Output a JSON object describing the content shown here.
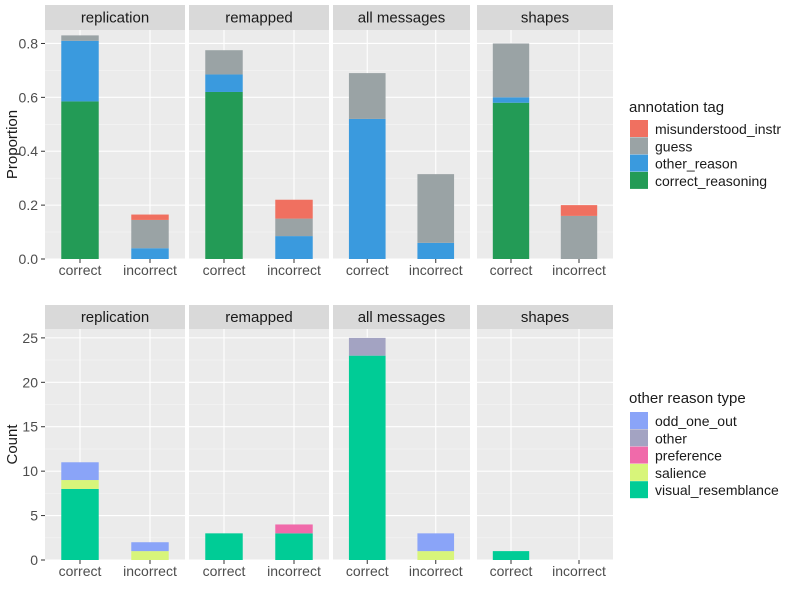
{
  "chart_data": [
    {
      "type": "bar",
      "stacked": true,
      "ylabel": "Proportion",
      "ylim": [
        0,
        0.85
      ],
      "yticks": [
        0.0,
        0.2,
        0.4,
        0.6,
        0.8
      ],
      "ytick_labels": [
        "0.0",
        "0.2",
        "0.4",
        "0.6",
        "0.8"
      ],
      "categories": [
        "correct",
        "incorrect"
      ],
      "legend": {
        "title": "annotation tag",
        "entries": [
          "misunderstood_instr",
          "guess",
          "other_reason",
          "correct_reasoning"
        ]
      },
      "stack_order": [
        "correct_reasoning",
        "other_reason",
        "guess",
        "misunderstood_instr"
      ],
      "colors": {
        "misunderstood_instr": "#f07060",
        "guess": "#9aa3a5",
        "other_reason": "#3a9ade",
        "correct_reasoning": "#239b56"
      },
      "facets": [
        {
          "title": "replication",
          "series": [
            {
              "name": "correct_reasoning",
              "values": [
                0.585,
                0.0
              ]
            },
            {
              "name": "other_reason",
              "values": [
                0.225,
                0.04
              ]
            },
            {
              "name": "guess",
              "values": [
                0.02,
                0.105
              ]
            },
            {
              "name": "misunderstood_instr",
              "values": [
                0.0,
                0.02
              ]
            }
          ]
        },
        {
          "title": "remapped",
          "series": [
            {
              "name": "correct_reasoning",
              "values": [
                0.62,
                0.0
              ]
            },
            {
              "name": "other_reason",
              "values": [
                0.065,
                0.085
              ]
            },
            {
              "name": "guess",
              "values": [
                0.09,
                0.065
              ]
            },
            {
              "name": "misunderstood_instr",
              "values": [
                0.0,
                0.07
              ]
            }
          ]
        },
        {
          "title": "all messages",
          "series": [
            {
              "name": "correct_reasoning",
              "values": [
                0.0,
                0.0
              ]
            },
            {
              "name": "other_reason",
              "values": [
                0.52,
                0.06
              ]
            },
            {
              "name": "guess",
              "values": [
                0.17,
                0.255
              ]
            },
            {
              "name": "misunderstood_instr",
              "values": [
                0.0,
                0.0
              ]
            }
          ]
        },
        {
          "title": "shapes",
          "series": [
            {
              "name": "correct_reasoning",
              "values": [
                0.58,
                0.0
              ]
            },
            {
              "name": "other_reason",
              "values": [
                0.02,
                0.0
              ]
            },
            {
              "name": "guess",
              "values": [
                0.2,
                0.16
              ]
            },
            {
              "name": "misunderstood_instr",
              "values": [
                0.0,
                0.04
              ]
            }
          ]
        }
      ]
    },
    {
      "type": "bar",
      "stacked": true,
      "ylabel": "Count",
      "ylim": [
        0,
        26
      ],
      "yticks": [
        0,
        5,
        10,
        15,
        20,
        25
      ],
      "ytick_labels": [
        "0",
        "5",
        "10",
        "15",
        "20",
        "25"
      ],
      "categories": [
        "correct",
        "incorrect"
      ],
      "legend": {
        "title": "other reason type",
        "entries": [
          "odd_one_out",
          "other",
          "preference",
          "salience",
          "visual_resemblance"
        ]
      },
      "stack_order": [
        "visual_resemblance",
        "salience",
        "preference",
        "other",
        "odd_one_out"
      ],
      "colors": {
        "odd_one_out": "#8aa4f8",
        "other": "#a3a3c2",
        "preference": "#f06aaa",
        "salience": "#d8f57a",
        "visual_resemblance": "#00cc96"
      },
      "facets": [
        {
          "title": "replication",
          "series": [
            {
              "name": "visual_resemblance",
              "values": [
                8,
                0
              ]
            },
            {
              "name": "salience",
              "values": [
                1,
                1
              ]
            },
            {
              "name": "preference",
              "values": [
                0,
                0
              ]
            },
            {
              "name": "other",
              "values": [
                0,
                0
              ]
            },
            {
              "name": "odd_one_out",
              "values": [
                2,
                1
              ]
            }
          ]
        },
        {
          "title": "remapped",
          "series": [
            {
              "name": "visual_resemblance",
              "values": [
                3,
                3
              ]
            },
            {
              "name": "salience",
              "values": [
                0,
                0
              ]
            },
            {
              "name": "preference",
              "values": [
                0,
                1
              ]
            },
            {
              "name": "other",
              "values": [
                0,
                0
              ]
            },
            {
              "name": "odd_one_out",
              "values": [
                0,
                0
              ]
            }
          ]
        },
        {
          "title": "all messages",
          "series": [
            {
              "name": "visual_resemblance",
              "values": [
                23,
                0
              ]
            },
            {
              "name": "salience",
              "values": [
                0,
                1
              ]
            },
            {
              "name": "preference",
              "values": [
                0,
                0
              ]
            },
            {
              "name": "other",
              "values": [
                2,
                0
              ]
            },
            {
              "name": "odd_one_out",
              "values": [
                0,
                2
              ]
            }
          ]
        },
        {
          "title": "shapes",
          "series": [
            {
              "name": "visual_resemblance",
              "values": [
                1,
                0
              ]
            },
            {
              "name": "salience",
              "values": [
                0,
                0
              ]
            },
            {
              "name": "preference",
              "values": [
                0,
                0
              ]
            },
            {
              "name": "other",
              "values": [
                0,
                0
              ]
            },
            {
              "name": "odd_one_out",
              "values": [
                0,
                0
              ]
            }
          ]
        }
      ]
    }
  ]
}
